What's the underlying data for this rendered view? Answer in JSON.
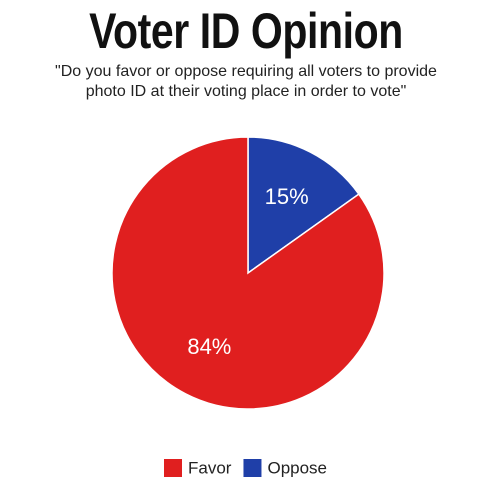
{
  "chart_data": {
    "type": "pie",
    "title": "Voter ID Opinion",
    "subtitle": "\"Do you favor or oppose requiring all voters to provide photo ID at their voting place in order to vote\"",
    "categories": [
      "Oppose",
      "Favor"
    ],
    "values": [
      15,
      84
    ],
    "value_labels": [
      "15%",
      "84%"
    ],
    "colors": [
      "#1f3fa8",
      "#e01f1f"
    ],
    "legend_order": [
      "Favor",
      "Oppose"
    ]
  }
}
